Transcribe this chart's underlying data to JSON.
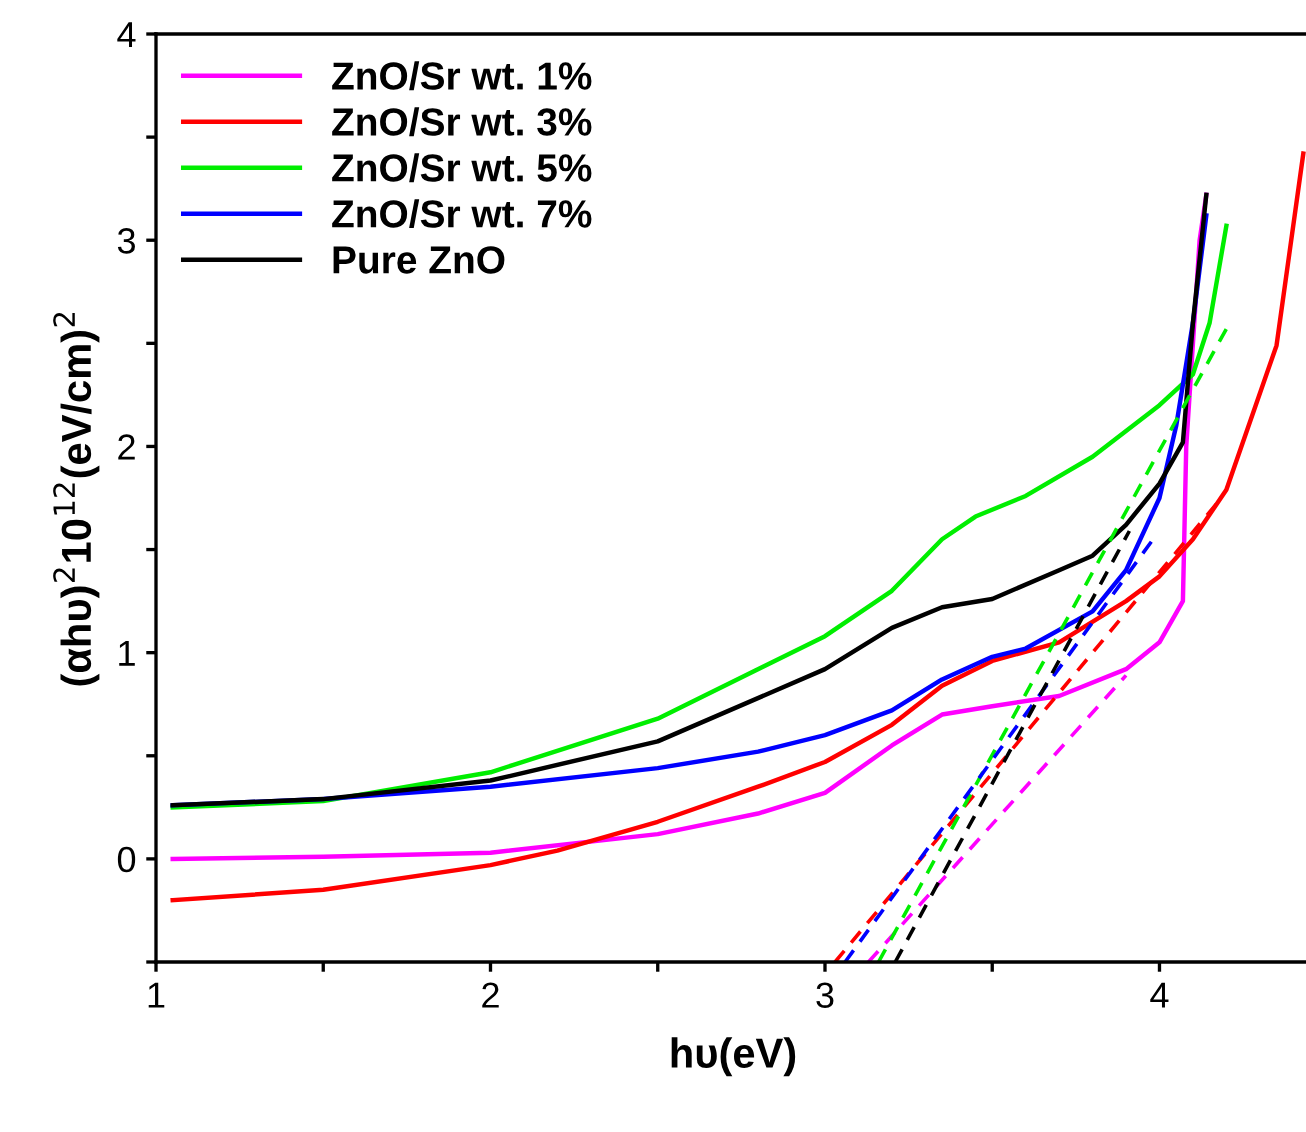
{
  "chart_data": {
    "type": "line",
    "xlabel": "hυ(eV)",
    "ylabel": "(αhυ)$^{2}$10$^{12}$(eV/cm)$^{2}$",
    "xlim": [
      1,
      4.45
    ],
    "ylim": [
      -0.5,
      4
    ],
    "xticks": [
      1,
      {
        "value": 1.5,
        "label": null
      },
      2,
      {
        "value": 2.5,
        "label": null
      },
      3,
      {
        "value": 3.5,
        "label": null
      },
      4
    ],
    "yticks": [
      {
        "value": -0.5,
        "label": null
      },
      0,
      {
        "value": 0.5,
        "label": null
      },
      1,
      {
        "value": 1.5,
        "label": null
      },
      2,
      {
        "value": 2.5,
        "label": null
      },
      3,
      {
        "value": 3.5,
        "label": null
      },
      4
    ],
    "grid": false,
    "legend": "top left",
    "marker": "none",
    "series": [
      {
        "name": "ZnO/Sr wt. 1%",
        "color": "#ff00ff",
        "x": [
          1.05,
          1.5,
          2.0,
          2.5,
          2.8,
          3.0,
          3.2,
          3.35,
          3.5,
          3.7,
          3.9,
          4.0,
          4.07,
          4.08,
          4.12,
          4.14
        ],
        "values": [
          0.0,
          0.01,
          0.03,
          0.12,
          0.22,
          0.32,
          0.55,
          0.7,
          0.74,
          0.79,
          0.92,
          1.05,
          1.25,
          2.0,
          3.0,
          3.22
        ]
      },
      {
        "name": "ZnO/Sr wt. 3%",
        "color": "#ff0000",
        "x": [
          1.05,
          1.5,
          2.0,
          2.2,
          2.5,
          2.8,
          3.0,
          3.2,
          3.35,
          3.5,
          3.7,
          3.9,
          4.0,
          4.1,
          4.2,
          4.35,
          4.43
        ],
        "values": [
          -0.2,
          -0.15,
          -0.03,
          0.04,
          0.18,
          0.35,
          0.47,
          0.65,
          0.84,
          0.96,
          1.05,
          1.25,
          1.37,
          1.55,
          1.79,
          2.49,
          3.42
        ]
      },
      {
        "name": "ZnO/Sr wt. 5%",
        "color": "#00ee00",
        "x": [
          1.05,
          1.5,
          2.0,
          2.5,
          3.0,
          3.2,
          3.35,
          3.45,
          3.6,
          3.8,
          4.0,
          4.1,
          4.15,
          4.2
        ],
        "values": [
          0.25,
          0.28,
          0.42,
          0.68,
          1.08,
          1.3,
          1.55,
          1.66,
          1.76,
          1.95,
          2.2,
          2.35,
          2.6,
          3.07
        ]
      },
      {
        "name": "ZnO/Sr wt. 7%",
        "color": "#0000ff",
        "x": [
          1.05,
          1.5,
          2.0,
          2.5,
          2.8,
          3.0,
          3.2,
          3.35,
          3.5,
          3.6,
          3.8,
          3.9,
          4.0,
          4.05,
          4.1,
          4.14
        ],
        "values": [
          0.26,
          0.29,
          0.35,
          0.44,
          0.52,
          0.6,
          0.72,
          0.87,
          0.98,
          1.02,
          1.2,
          1.4,
          1.75,
          2.1,
          2.6,
          3.12
        ]
      },
      {
        "name": "Pure ZnO",
        "color": "#000000",
        "x": [
          1.05,
          1.5,
          2.0,
          2.5,
          3.0,
          3.2,
          3.35,
          3.5,
          3.7,
          3.8,
          3.9,
          4.0,
          4.07,
          4.1,
          4.14
        ],
        "values": [
          0.26,
          0.29,
          0.38,
          0.57,
          0.92,
          1.12,
          1.22,
          1.26,
          1.4,
          1.47,
          1.62,
          1.82,
          2.02,
          2.6,
          3.22
        ]
      },
      {
        "color": "#ff00ff",
        "line_style": "dashed",
        "x": [
          3.13,
          3.9
        ],
        "values": [
          -0.5,
          0.89
        ]
      },
      {
        "color": "#ff0000",
        "line_style": "dashed",
        "x": [
          3.03,
          4.19
        ],
        "values": [
          -0.5,
          1.76
        ]
      },
      {
        "color": "#00ee00",
        "line_style": "dashed",
        "x": [
          3.16,
          4.21
        ],
        "values": [
          -0.5,
          2.6
        ]
      },
      {
        "color": "#0000ff",
        "line_style": "dashed",
        "x": [
          3.06,
          3.99
        ],
        "values": [
          -0.5,
          1.57
        ]
      },
      {
        "color": "#000000",
        "line_style": "dashed",
        "x": [
          3.21,
          3.91
        ],
        "values": [
          -0.5,
          1.59
        ]
      }
    ]
  }
}
